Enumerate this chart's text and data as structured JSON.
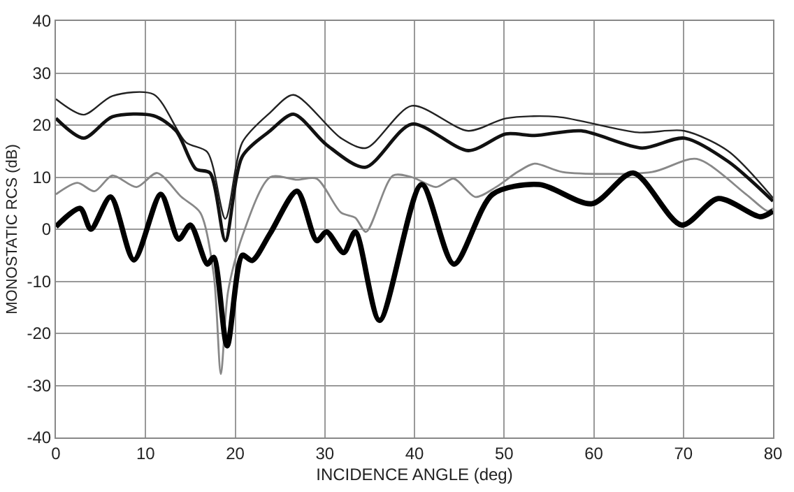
{
  "chart_data": {
    "type": "line",
    "xlabel": "INCIDENCE ANGLE (deg)",
    "ylabel": "MONOSTATIC RCS (dB)",
    "xlim": [
      0,
      80
    ],
    "xticks": [
      0,
      10,
      20,
      30,
      40,
      50,
      60,
      70,
      80
    ],
    "ylim": [
      -40,
      40
    ],
    "yticks": [
      -40,
      -30,
      -20,
      -10,
      0,
      10,
      20,
      30,
      40
    ],
    "grid": true,
    "series": [
      {
        "color": "#222222",
        "x": [
          0,
          3.1,
          6.3,
          10.9,
          14.5,
          16.9,
          18.9,
          20.8,
          23.9,
          26.5,
          31.8,
          34.6,
          39.7,
          46,
          50.2,
          55.9,
          64.9,
          70.1,
          75,
          80
        ],
        "values": [
          25,
          22,
          25.6,
          25.9,
          16.7,
          14.8,
          2,
          16.7,
          22.4,
          25.8,
          17.5,
          15.6,
          23.7,
          18.9,
          21.3,
          21.6,
          18.6,
          18.9,
          15,
          6
        ]
      },
      {
        "color": "#111111",
        "x": [
          0,
          3.1,
          6.3,
          10.9,
          13.4,
          15.6,
          17.2,
          18.9,
          20.8,
          23.9,
          26.5,
          30.2,
          34.5,
          39.7,
          46,
          50.2,
          53.4,
          58.6,
          65.4,
          70.1,
          75,
          80
        ],
        "values": [
          21.3,
          17.5,
          21.6,
          21.8,
          18.9,
          11.6,
          10.8,
          -2.2,
          14,
          18.9,
          22.1,
          16.2,
          11.9,
          20.2,
          15.1,
          18.3,
          18,
          18.9,
          15.6,
          17.5,
          13,
          5.4
        ]
      },
      {
        "color": "#888888",
        "x": [
          0,
          2.4,
          4.3,
          6.3,
          9,
          11.3,
          14,
          16.1,
          17.6,
          18.4,
          19.2,
          20.8,
          23.9,
          26.9,
          29.1,
          31.8,
          33.4,
          34.6,
          37.6,
          39.7,
          42.4,
          44.4,
          46.8,
          49.1,
          51.5,
          53.4,
          56.5,
          66.5,
          71.5,
          77,
          79.4,
          80
        ],
        "values": [
          6.7,
          8.9,
          7.3,
          10.3,
          8.1,
          10.8,
          6.2,
          3.2,
          -8.6,
          -27.8,
          -12,
          -1.3,
          10,
          9.5,
          9.7,
          3.2,
          2.2,
          -0.5,
          10.3,
          10,
          8.1,
          9.7,
          6.2,
          8.1,
          11,
          12.6,
          11,
          11,
          13.5,
          6.7,
          3.5,
          4
        ]
      },
      {
        "color": "#000000",
        "x": [
          0,
          2.7,
          3.9,
          6.1,
          8.7,
          11.7,
          13.7,
          15,
          16.9,
          17.6,
          19.1,
          20.8,
          21.9,
          23.9,
          26.9,
          29.1,
          30.2,
          32.1,
          33.4,
          36.1,
          40.8,
          44.4,
          48.7,
          53.9,
          59.8,
          64.4,
          69.8,
          73.9,
          78.6,
          80
        ],
        "values": [
          0.5,
          4,
          0,
          6.2,
          -5.9,
          6.7,
          -1.9,
          0.8,
          -6.7,
          -5.4,
          -22.4,
          -5,
          -6,
          -0.8,
          7.3,
          -2.2,
          -0.5,
          -4.5,
          -0.5,
          -17.5,
          8.6,
          -6.7,
          6.7,
          8.6,
          4.9,
          10.8,
          0.8,
          5.9,
          2.4,
          3.5
        ]
      }
    ]
  }
}
